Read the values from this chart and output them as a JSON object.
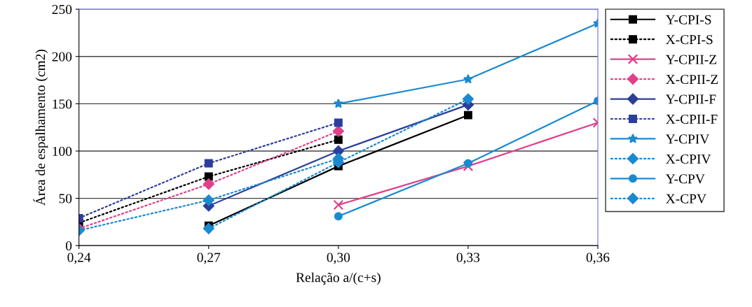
{
  "chart_data": {
    "type": "line",
    "xlabel": "Relação a/(c+s)",
    "ylabel": "Área de espalhamento (cm2)",
    "xlim": [
      0.24,
      0.36
    ],
    "ylim": [
      0,
      250
    ],
    "xticks": [
      {
        "value": 0.24,
        "label": "0,24"
      },
      {
        "value": 0.27,
        "label": "0,27"
      },
      {
        "value": 0.3,
        "label": "0,30"
      },
      {
        "value": 0.33,
        "label": "0,33"
      },
      {
        "value": 0.36,
        "label": "0,36"
      }
    ],
    "yticks": [
      0,
      50,
      100,
      150,
      200,
      250
    ],
    "grid": "y",
    "legend": "right",
    "x": [
      0.24,
      0.27,
      0.3,
      0.33,
      0.36
    ],
    "series": [
      {
        "name": "Y-CPI-S",
        "color": "#000000",
        "values": [
          null,
          21,
          84,
          138,
          null
        ],
        "marker": "square",
        "line_style": "solid"
      },
      {
        "name": "X-CPI-S",
        "color": "#000000",
        "values": [
          24,
          73,
          112,
          null,
          null
        ],
        "marker": "square",
        "line_style": "dotted"
      },
      {
        "name": "Y-CPII-Z",
        "color": "#e0408a",
        "values": [
          null,
          null,
          43,
          84,
          130
        ],
        "marker": "cross",
        "line_style": "solid"
      },
      {
        "name": "X-CPII-Z",
        "color": "#e0408a",
        "values": [
          18,
          65,
          121,
          null,
          null
        ],
        "marker": "diamond",
        "line_style": "dotted"
      },
      {
        "name": "Y-CPII-F",
        "color": "#2b3f9a",
        "values": [
          null,
          42,
          100,
          149,
          null
        ],
        "marker": "diamond",
        "line_style": "solid"
      },
      {
        "name": "X-CPII-F",
        "color": "#2b3f9a",
        "values": [
          29,
          87,
          130,
          null,
          null
        ],
        "marker": "square",
        "line_style": "dotted"
      },
      {
        "name": "Y-CPIV",
        "color": "#1a8ad0",
        "values": [
          null,
          null,
          150,
          176,
          235
        ],
        "marker": "star",
        "line_style": "solid"
      },
      {
        "name": "X-CPIV",
        "color": "#1a8ad0",
        "values": [
          null,
          18,
          88,
          155,
          null
        ],
        "marker": "diamond",
        "line_style": "dotted"
      },
      {
        "name": "Y-CPV",
        "color": "#1a8ad0",
        "values": [
          null,
          null,
          31,
          87,
          153
        ],
        "marker": "circle",
        "line_style": "solid"
      },
      {
        "name": "X-CPV",
        "color": "#1a8ad0",
        "values": [
          16,
          48,
          92,
          null,
          null
        ],
        "marker": "diamond",
        "line_style": "dotted"
      }
    ]
  }
}
